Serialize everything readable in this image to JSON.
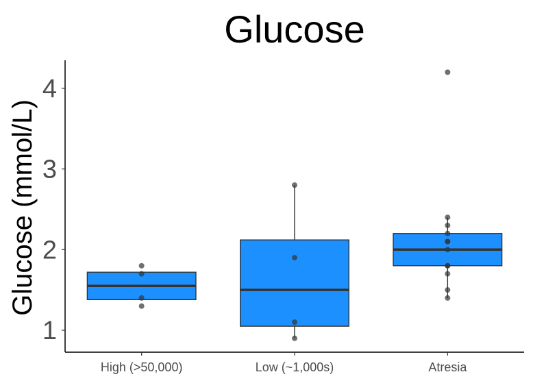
{
  "chart_data": {
    "type": "box",
    "title": "Glucose",
    "xlabel": "",
    "ylabel": "Glucose (mmol/L)",
    "ylim": [
      0.75,
      4.35
    ],
    "yticks": [
      1,
      2,
      3,
      4
    ],
    "categories": [
      "High (>50,000)",
      "Low (~1,000s)",
      "Atresia"
    ],
    "grid": false,
    "box_color": "#1c90ff",
    "median_color": "#333333",
    "point_color": "#333333",
    "boxes": [
      {
        "category": "High (>50,000)",
        "q1": 1.38,
        "median": 1.55,
        "q3": 1.72,
        "whisker_low": 1.38,
        "whisker_high": 1.72,
        "points": [
          1.8,
          1.7,
          1.4,
          1.3
        ]
      },
      {
        "category": "Low (~1,000s)",
        "q1": 1.05,
        "median": 1.5,
        "q3": 2.12,
        "whisker_low": 0.9,
        "whisker_high": 2.8,
        "points": [
          2.8,
          1.9,
          1.1,
          0.9
        ]
      },
      {
        "category": "Atresia",
        "q1": 1.8,
        "median": 2.0,
        "q3": 2.2,
        "whisker_low": 1.4,
        "whisker_high": 2.4,
        "points": [
          4.2,
          2.4,
          2.3,
          2.2,
          2.1,
          2.1,
          2.0,
          1.8,
          1.8,
          1.7,
          1.5,
          1.4
        ]
      }
    ]
  }
}
